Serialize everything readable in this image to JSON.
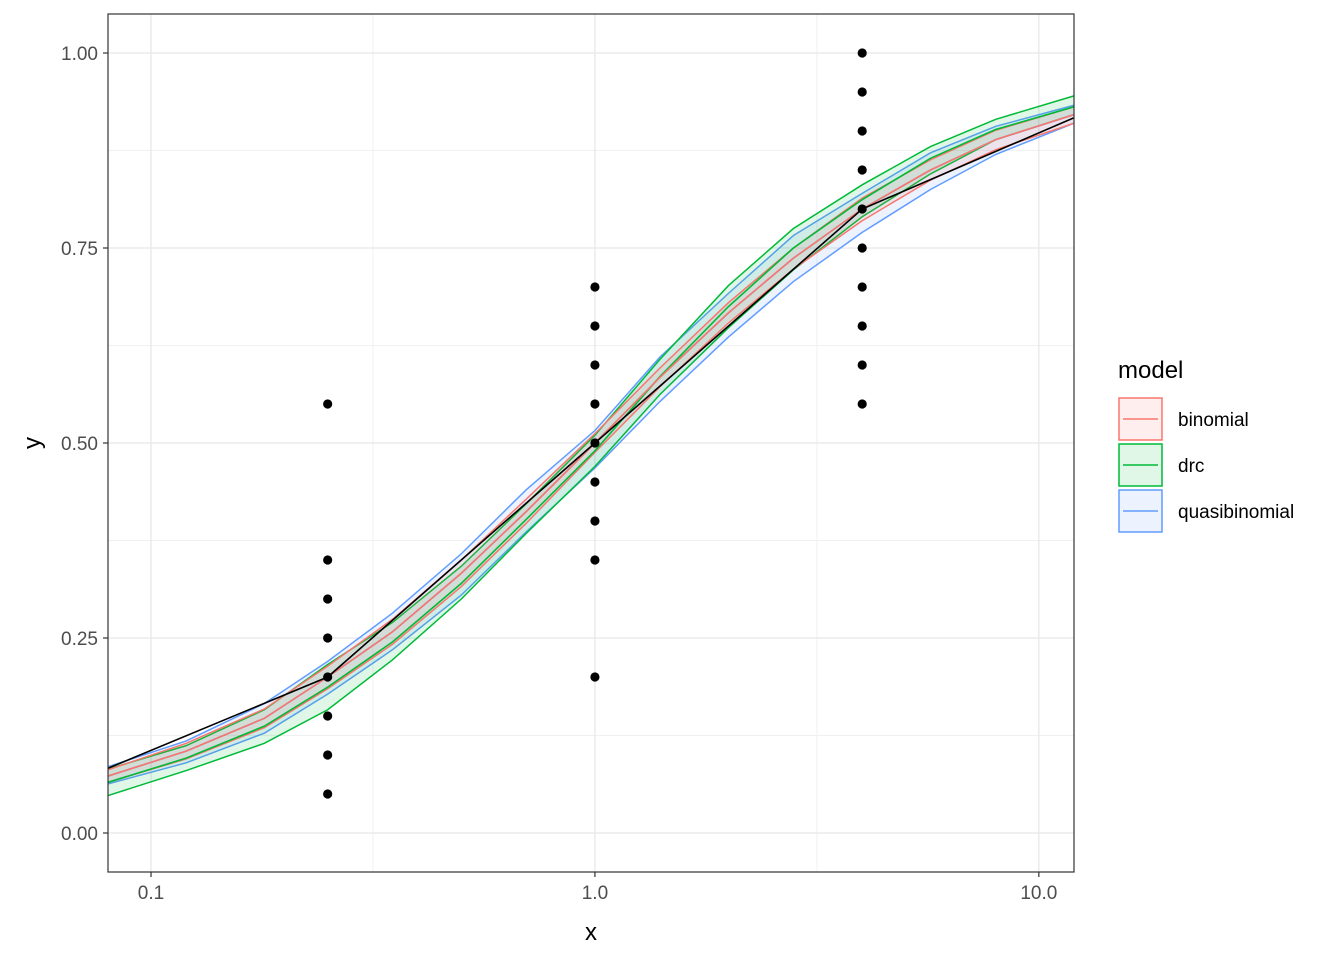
{
  "chart_data": {
    "type": "line",
    "title": "",
    "xlabel": "x",
    "ylabel": "y",
    "x_scale": "log10",
    "xlim": [
      0.08,
      12
    ],
    "ylim": [
      -0.05,
      1.05
    ],
    "x_ticks": [
      {
        "value": 0.1,
        "label": "0.1"
      },
      {
        "value": 1,
        "label": "1.0"
      },
      {
        "value": 10,
        "label": "10.0"
      }
    ],
    "y_ticks": [
      {
        "value": 0,
        "label": "0.00"
      },
      {
        "value": 0.25,
        "label": "0.25"
      },
      {
        "value": 0.5,
        "label": "0.50"
      },
      {
        "value": 0.75,
        "label": "0.75"
      },
      {
        "value": 1,
        "label": "1.00"
      }
    ],
    "grid": true,
    "legend": {
      "title": "model",
      "position": "right",
      "entries": [
        {
          "name": "binomial",
          "color": "#F8766D"
        },
        {
          "name": "drc",
          "color": "#00BA38"
        },
        {
          "name": "quasibinomial",
          "color": "#619CFF"
        }
      ]
    },
    "points": {
      "color": "#000000",
      "data": [
        {
          "x": 0.25,
          "y": 0.05
        },
        {
          "x": 0.25,
          "y": 0.1
        },
        {
          "x": 0.25,
          "y": 0.15
        },
        {
          "x": 0.25,
          "y": 0.2
        },
        {
          "x": 0.25,
          "y": 0.25
        },
        {
          "x": 0.25,
          "y": 0.3
        },
        {
          "x": 0.25,
          "y": 0.35
        },
        {
          "x": 0.25,
          "y": 0.55
        },
        {
          "x": 1,
          "y": 0.2
        },
        {
          "x": 1,
          "y": 0.35
        },
        {
          "x": 1,
          "y": 0.4
        },
        {
          "x": 1,
          "y": 0.45
        },
        {
          "x": 1,
          "y": 0.5
        },
        {
          "x": 1,
          "y": 0.55
        },
        {
          "x": 1,
          "y": 0.6
        },
        {
          "x": 1,
          "y": 0.65
        },
        {
          "x": 1,
          "y": 0.7
        },
        {
          "x": 4,
          "y": 0.55
        },
        {
          "x": 4,
          "y": 0.6
        },
        {
          "x": 4,
          "y": 0.65
        },
        {
          "x": 4,
          "y": 0.7
        },
        {
          "x": 4,
          "y": 0.75
        },
        {
          "x": 4,
          "y": 0.8
        },
        {
          "x": 4,
          "y": 0.85
        },
        {
          "x": 4,
          "y": 0.9
        },
        {
          "x": 4,
          "y": 0.95
        },
        {
          "x": 4,
          "y": 1.0
        }
      ]
    },
    "observed_means": {
      "color": "#000000",
      "x": [
        0.08,
        0.25,
        1,
        4,
        12
      ],
      "y": [
        0.083,
        0.2,
        0.5,
        0.8,
        0.917
      ]
    },
    "series": [
      {
        "name": "binomial",
        "color": "#F8766D",
        "fill": "#F8766D",
        "x": [
          0.08,
          0.12,
          0.18,
          0.25,
          0.35,
          0.5,
          0.7,
          1,
          1.4,
          2,
          2.8,
          4,
          5.7,
          8,
          12
        ],
        "fit": [
          0.073,
          0.105,
          0.147,
          0.2,
          0.258,
          0.333,
          0.412,
          0.5,
          0.584,
          0.667,
          0.737,
          0.8,
          0.85,
          0.889,
          0.921
        ],
        "lower": [
          0.065,
          0.095,
          0.135,
          0.185,
          0.242,
          0.316,
          0.397,
          0.488,
          0.572,
          0.654,
          0.723,
          0.785,
          0.837,
          0.876,
          0.91
        ],
        "upper": [
          0.081,
          0.115,
          0.159,
          0.214,
          0.274,
          0.35,
          0.428,
          0.512,
          0.596,
          0.68,
          0.75,
          0.814,
          0.863,
          0.901,
          0.931
        ]
      },
      {
        "name": "drc",
        "color": "#00BA38",
        "fill": "#00BA38",
        "x": [
          0.08,
          0.12,
          0.18,
          0.25,
          0.35,
          0.5,
          0.7,
          1,
          1.4,
          2,
          2.8,
          4,
          5.7,
          8,
          12
        ],
        "fit": [
          0.065,
          0.096,
          0.137,
          0.187,
          0.245,
          0.32,
          0.402,
          0.49,
          0.585,
          0.675,
          0.75,
          0.812,
          0.865,
          0.902,
          0.931
        ],
        "lower": [
          0.048,
          0.08,
          0.115,
          0.158,
          0.222,
          0.3,
          0.384,
          0.47,
          0.562,
          0.648,
          0.722,
          0.79,
          0.845,
          0.889,
          0.921
        ],
        "upper": [
          0.082,
          0.112,
          0.158,
          0.216,
          0.27,
          0.342,
          0.422,
          0.51,
          0.607,
          0.702,
          0.775,
          0.831,
          0.88,
          0.915,
          0.945
        ]
      },
      {
        "name": "quasibinomial",
        "color": "#619CFF",
        "fill": "#619CFF",
        "x": [
          0.08,
          0.12,
          0.18,
          0.25,
          0.35,
          0.5,
          0.7,
          1,
          1.4,
          2,
          2.8,
          4,
          5.7,
          8,
          12
        ],
        "fit": [
          0.073,
          0.105,
          0.147,
          0.2,
          0.258,
          0.333,
          0.412,
          0.5,
          0.584,
          0.667,
          0.737,
          0.8,
          0.85,
          0.889,
          0.921
        ],
        "lower": [
          0.063,
          0.09,
          0.128,
          0.178,
          0.235,
          0.305,
          0.386,
          0.468,
          0.553,
          0.636,
          0.707,
          0.77,
          0.825,
          0.87,
          0.91
        ],
        "upper": [
          0.085,
          0.118,
          0.166,
          0.22,
          0.282,
          0.358,
          0.44,
          0.516,
          0.61,
          0.692,
          0.766,
          0.82,
          0.872,
          0.906,
          0.933
        ]
      }
    ]
  }
}
